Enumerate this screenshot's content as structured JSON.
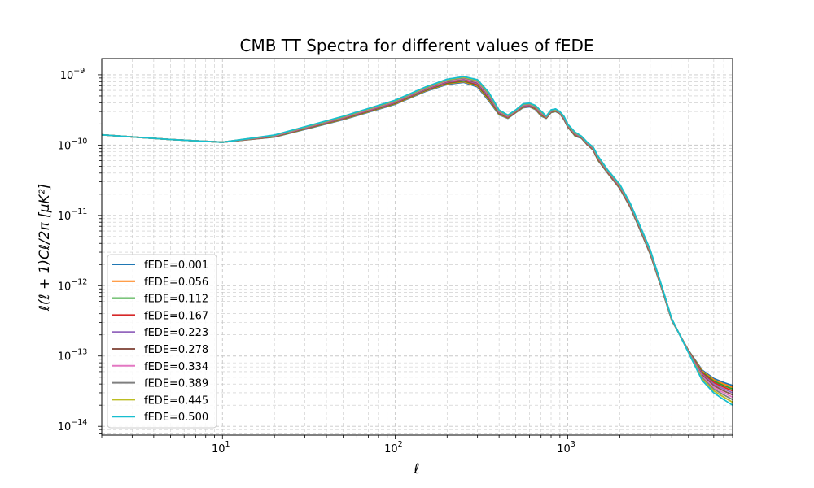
{
  "chart_data": {
    "type": "line",
    "title": "CMB TT Spectra for different values of fEDE",
    "xlabel": "ℓ",
    "ylabel": "ℓ(ℓ + 1)Cℓ/2π [μK²]",
    "xscale": "log",
    "yscale": "log",
    "xlim": [
      2,
      9000
    ],
    "ylim": [
      7.5e-15,
      1.7e-09
    ],
    "grid": true,
    "legend_position": "lower-left",
    "x_ticks": [
      {
        "base": "10",
        "exp": "1",
        "value": 10
      },
      {
        "base": "10",
        "exp": "2",
        "value": 100
      },
      {
        "base": "10",
        "exp": "3",
        "value": 1000
      }
    ],
    "y_ticks": [
      {
        "base": "10",
        "exp": "−14",
        "value": 1e-14
      },
      {
        "base": "10",
        "exp": "−13",
        "value": 1e-13
      },
      {
        "base": "10",
        "exp": "−12",
        "value": 1e-12
      },
      {
        "base": "10",
        "exp": "−11",
        "value": 1e-11
      },
      {
        "base": "10",
        "exp": "−10",
        "value": 1e-10
      },
      {
        "base": "10",
        "exp": "−9",
        "value": 1e-09
      }
    ],
    "x": [
      2,
      5,
      10,
      20,
      50,
      100,
      150,
      200,
      250,
      300,
      350,
      400,
      450,
      500,
      550,
      600,
      650,
      700,
      750,
      800,
      850,
      900,
      950,
      1000,
      1100,
      1200,
      1300,
      1400,
      1500,
      1700,
      2000,
      2300,
      2600,
      3000,
      3500,
      4000,
      5000,
      6000,
      7000,
      8000,
      9000
    ],
    "series": [
      {
        "name": "fEDE=0.001",
        "fede": 0.001,
        "color": "#1f77b4",
        "values": [
          1.4e-10,
          1.2e-10,
          1.1e-10,
          1.3e-10,
          2.3e-10,
          3.8e-10,
          5.8e-10,
          7.3e-10,
          7.8e-10,
          6.7e-10,
          4.2e-10,
          2.7e-10,
          2.4e-10,
          2.9e-10,
          3.4e-10,
          3.5e-10,
          3.2e-10,
          2.6e-10,
          2.4e-10,
          2.9e-10,
          3e-10,
          2.8e-10,
          2.3e-10,
          1.8e-10,
          1.35e-10,
          1.25e-10,
          1e-10,
          8.5e-11,
          6e-11,
          4e-11,
          2.4e-11,
          1.3e-11,
          6.5e-12,
          2.8e-12,
          9e-13,
          3.2e-13,
          1.2e-13,
          6.3e-14,
          4.8e-14,
          4.2e-14,
          3.8e-14
        ]
      },
      {
        "name": "fEDE=0.056",
        "fede": 0.056,
        "color": "#ff7f0e",
        "values": [
          1.4e-10,
          1.2e-10,
          1.1e-10,
          1.31e-10,
          2.33e-10,
          3.86e-10,
          5.9e-10,
          7.45e-10,
          7.98e-10,
          6.9e-10,
          4.35e-10,
          2.75e-10,
          2.43e-10,
          2.93e-10,
          3.45e-10,
          3.55e-10,
          3.25e-10,
          2.65e-10,
          2.42e-10,
          2.93e-10,
          3.03e-10,
          2.82e-10,
          2.33e-10,
          1.82e-10,
          1.37e-10,
          1.26e-10,
          1.01e-10,
          8.6e-11,
          6.1e-11,
          4.05e-11,
          2.44e-11,
          1.32e-11,
          6.6e-12,
          2.85e-12,
          9.1e-13,
          3.22e-13,
          1.19e-13,
          6.1e-14,
          4.6e-14,
          4e-14,
          3.6e-14
        ]
      },
      {
        "name": "fEDE=0.112",
        "fede": 0.112,
        "color": "#2ca02c",
        "values": [
          1.4e-10,
          1.2e-10,
          1.1e-10,
          1.32e-10,
          2.36e-10,
          3.92e-10,
          6e-10,
          7.6e-10,
          8.16e-10,
          7.1e-10,
          4.5e-10,
          2.8e-10,
          2.46e-10,
          2.96e-10,
          3.5e-10,
          3.6e-10,
          3.3e-10,
          2.7e-10,
          2.44e-10,
          2.96e-10,
          3.06e-10,
          2.84e-10,
          2.36e-10,
          1.84e-10,
          1.39e-10,
          1.27e-10,
          1.02e-10,
          8.7e-11,
          6.2e-11,
          4.1e-11,
          2.48e-11,
          1.34e-11,
          6.7e-12,
          2.9e-12,
          9.2e-13,
          3.24e-13,
          1.18e-13,
          5.9e-14,
          4.4e-14,
          3.8e-14,
          3.4e-14
        ]
      },
      {
        "name": "fEDE=0.167",
        "fede": 0.167,
        "color": "#d62728",
        "values": [
          1.4e-10,
          1.2e-10,
          1.1e-10,
          1.33e-10,
          2.39e-10,
          3.98e-10,
          6.1e-10,
          7.75e-10,
          8.34e-10,
          7.3e-10,
          4.65e-10,
          2.85e-10,
          2.49e-10,
          2.99e-10,
          3.55e-10,
          3.65e-10,
          3.35e-10,
          2.75e-10,
          2.46e-10,
          2.99e-10,
          3.09e-10,
          2.86e-10,
          2.39e-10,
          1.86e-10,
          1.41e-10,
          1.28e-10,
          1.03e-10,
          8.8e-11,
          6.3e-11,
          4.15e-11,
          2.52e-11,
          1.36e-11,
          6.8e-12,
          2.95e-12,
          9.3e-13,
          3.26e-13,
          1.17e-13,
          5.7e-14,
          4.2e-14,
          3.6e-14,
          3.2e-14
        ]
      },
      {
        "name": "fEDE=0.223",
        "fede": 0.223,
        "color": "#9467bd",
        "values": [
          1.4e-10,
          1.2e-10,
          1.1e-10,
          1.34e-10,
          2.42e-10,
          4.04e-10,
          6.2e-10,
          7.9e-10,
          8.52e-10,
          7.5e-10,
          4.8e-10,
          2.9e-10,
          2.52e-10,
          3.02e-10,
          3.6e-10,
          3.7e-10,
          3.4e-10,
          2.8e-10,
          2.48e-10,
          3.02e-10,
          3.12e-10,
          2.88e-10,
          2.42e-10,
          1.88e-10,
          1.43e-10,
          1.29e-10,
          1.04e-10,
          8.9e-11,
          6.4e-11,
          4.2e-11,
          2.56e-11,
          1.38e-11,
          6.9e-12,
          3e-12,
          9.4e-13,
          3.28e-13,
          1.16e-13,
          5.5e-14,
          4e-14,
          3.4e-14,
          3e-14
        ]
      },
      {
        "name": "fEDE=0.278",
        "fede": 0.278,
        "color": "#8c564b",
        "values": [
          1.4e-10,
          1.2e-10,
          1.1e-10,
          1.35e-10,
          2.45e-10,
          4.1e-10,
          6.3e-10,
          8.05e-10,
          8.7e-10,
          7.7e-10,
          4.95e-10,
          2.95e-10,
          2.55e-10,
          3.05e-10,
          3.65e-10,
          3.75e-10,
          3.45e-10,
          2.85e-10,
          2.5e-10,
          3.05e-10,
          3.15e-10,
          2.9e-10,
          2.45e-10,
          1.9e-10,
          1.45e-10,
          1.3e-10,
          1.05e-10,
          9e-11,
          6.5e-11,
          4.25e-11,
          2.6e-11,
          1.4e-11,
          7e-12,
          3.05e-12,
          9.5e-13,
          3.3e-13,
          1.15e-13,
          5.3e-14,
          3.8e-14,
          3.2e-14,
          2.8e-14
        ]
      },
      {
        "name": "fEDE=0.334",
        "fede": 0.334,
        "color": "#e377c2",
        "values": [
          1.4e-10,
          1.2e-10,
          1.1e-10,
          1.36e-10,
          2.48e-10,
          4.16e-10,
          6.4e-10,
          8.2e-10,
          8.88e-10,
          7.9e-10,
          5.1e-10,
          3e-10,
          2.58e-10,
          3.08e-10,
          3.7e-10,
          3.8e-10,
          3.5e-10,
          2.9e-10,
          2.52e-10,
          3.08e-10,
          3.18e-10,
          2.92e-10,
          2.48e-10,
          1.92e-10,
          1.47e-10,
          1.31e-10,
          1.06e-10,
          9.1e-11,
          6.6e-11,
          4.3e-11,
          2.64e-11,
          1.42e-11,
          7.1e-12,
          3.1e-12,
          9.6e-13,
          3.32e-13,
          1.14e-13,
          5.1e-14,
          3.6e-14,
          3e-14,
          2.6e-14
        ]
      },
      {
        "name": "fEDE=0.389",
        "fede": 0.389,
        "color": "#7f7f7f",
        "values": [
          1.4e-10,
          1.2e-10,
          1.1e-10,
          1.37e-10,
          2.51e-10,
          4.22e-10,
          6.5e-10,
          8.35e-10,
          9.06e-10,
          8.1e-10,
          5.25e-10,
          3.05e-10,
          2.61e-10,
          3.11e-10,
          3.75e-10,
          3.85e-10,
          3.55e-10,
          2.95e-10,
          2.54e-10,
          3.11e-10,
          3.21e-10,
          2.94e-10,
          2.51e-10,
          1.94e-10,
          1.49e-10,
          1.32e-10,
          1.07e-10,
          9.2e-11,
          6.7e-11,
          4.35e-11,
          2.68e-11,
          1.44e-11,
          7.2e-12,
          3.15e-12,
          9.7e-13,
          3.34e-13,
          1.13e-13,
          4.9e-14,
          3.4e-14,
          2.8e-14,
          2.4e-14
        ]
      },
      {
        "name": "fEDE=0.445",
        "fede": 0.445,
        "color": "#bcbd22",
        "values": [
          1.4e-10,
          1.2e-10,
          1.1e-10,
          1.38e-10,
          2.54e-10,
          4.28e-10,
          6.6e-10,
          8.5e-10,
          9.24e-10,
          8.3e-10,
          5.4e-10,
          3.1e-10,
          2.64e-10,
          3.14e-10,
          3.8e-10,
          3.9e-10,
          3.6e-10,
          3e-10,
          2.56e-10,
          3.14e-10,
          3.24e-10,
          2.96e-10,
          2.54e-10,
          1.96e-10,
          1.51e-10,
          1.33e-10,
          1.08e-10,
          9.3e-11,
          6.8e-11,
          4.4e-11,
          2.72e-11,
          1.46e-11,
          7.3e-12,
          3.2e-12,
          9.8e-13,
          3.36e-13,
          1.12e-13,
          4.7e-14,
          3.2e-14,
          2.6e-14,
          2.2e-14
        ]
      },
      {
        "name": "fEDE=0.500",
        "fede": 0.5,
        "color": "#17becf",
        "values": [
          1.4e-10,
          1.2e-10,
          1.1e-10,
          1.39e-10,
          2.57e-10,
          4.34e-10,
          6.7e-10,
          8.65e-10,
          9.42e-10,
          8.5e-10,
          5.55e-10,
          3.15e-10,
          2.67e-10,
          3.17e-10,
          3.85e-10,
          3.95e-10,
          3.65e-10,
          3.05e-10,
          2.58e-10,
          3.17e-10,
          3.27e-10,
          2.98e-10,
          2.57e-10,
          1.98e-10,
          1.53e-10,
          1.34e-10,
          1.09e-10,
          9.4e-11,
          6.9e-11,
          4.45e-11,
          2.76e-11,
          1.48e-11,
          7.4e-12,
          3.25e-12,
          9.9e-13,
          3.38e-13,
          1.11e-13,
          4.5e-14,
          3e-14,
          2.4e-14,
          2e-14
        ]
      }
    ]
  }
}
